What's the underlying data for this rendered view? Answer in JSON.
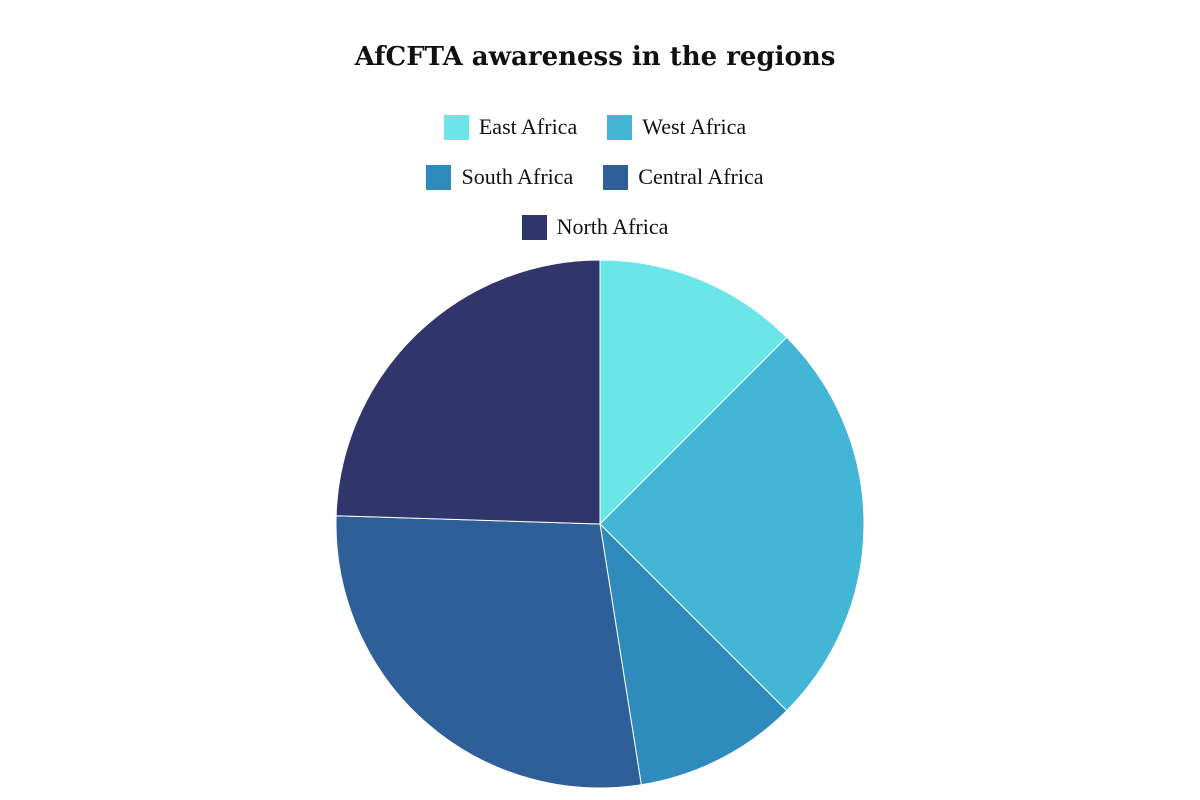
{
  "chart_data": {
    "type": "pie",
    "title": "AfCFTA awareness in the regions",
    "legend_placement": "top",
    "categories": [
      "East Africa",
      "West Africa",
      "South Africa",
      "Central Africa",
      "North Africa"
    ],
    "values": [
      12.5,
      25,
      10,
      28,
      24.5
    ],
    "colors": [
      "#6ae5e8",
      "#43b6d6",
      "#2f8bbb",
      "#2e5f99",
      "#30356b"
    ]
  },
  "legend": {
    "rows": [
      [
        0,
        1
      ],
      [
        2,
        3
      ],
      [
        4
      ]
    ]
  }
}
